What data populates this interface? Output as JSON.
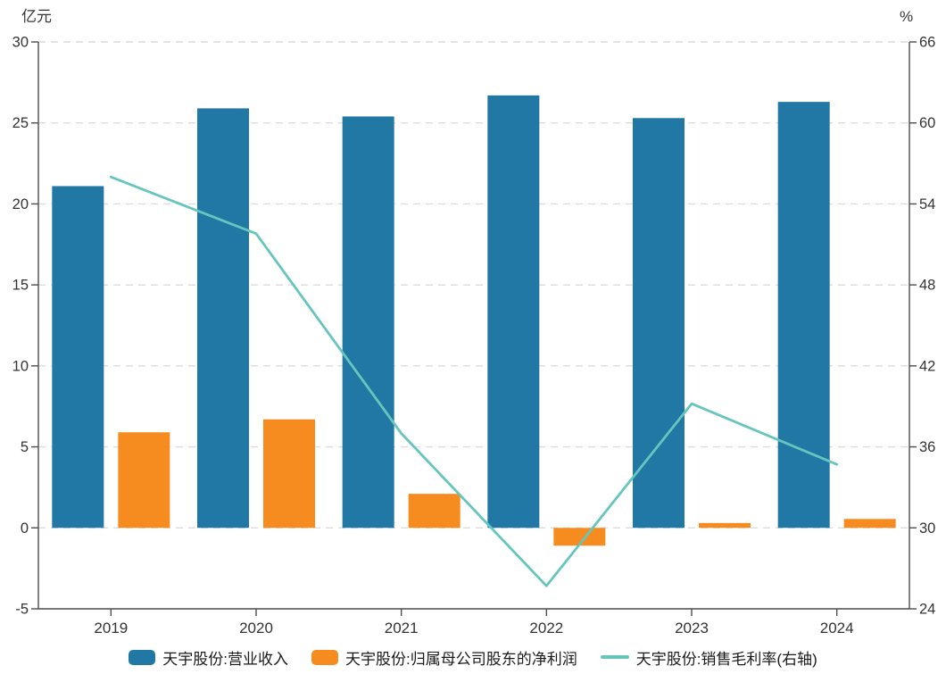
{
  "colors": {
    "background": "#ffffff",
    "grid": "#dcdcdc",
    "axis": "#4d4d4d",
    "text": "#333333"
  },
  "chart_data": {
    "type": "bar+line",
    "title": "",
    "categories": [
      "2019",
      "2020",
      "2021",
      "2022",
      "2023",
      "2024"
    ],
    "series": [
      {
        "key": "revenue",
        "name": "天宇股份:营业收入",
        "type": "bar",
        "axis": "left",
        "color": "#2178a4",
        "values": [
          21.1,
          25.9,
          25.4,
          26.7,
          25.3,
          26.3
        ]
      },
      {
        "key": "net-profit",
        "name": "天宇股份:归属母公司股东的净利润",
        "type": "bar",
        "axis": "left",
        "color": "#f68b1f",
        "values": [
          5.9,
          6.7,
          2.1,
          -1.1,
          0.3,
          0.55
        ]
      },
      {
        "key": "gross-margin",
        "name": "天宇股份:销售毛利率(右轴)",
        "type": "line",
        "axis": "right",
        "color": "#66c6be",
        "values": [
          56.0,
          51.8,
          37.0,
          25.7,
          39.2,
          34.7
        ]
      }
    ],
    "left_axis": {
      "unit": "亿元",
      "min": -5,
      "max": 30,
      "step": 5,
      "ticks": [
        30,
        25,
        20,
        15,
        10,
        5,
        0,
        -5
      ]
    },
    "right_axis": {
      "unit": "%",
      "min": 24,
      "max": 66,
      "step": 6,
      "ticks": [
        66,
        60,
        54,
        48,
        42,
        36,
        30,
        24
      ]
    },
    "grid": "dashed-horizontal",
    "legend_position": "bottom"
  }
}
